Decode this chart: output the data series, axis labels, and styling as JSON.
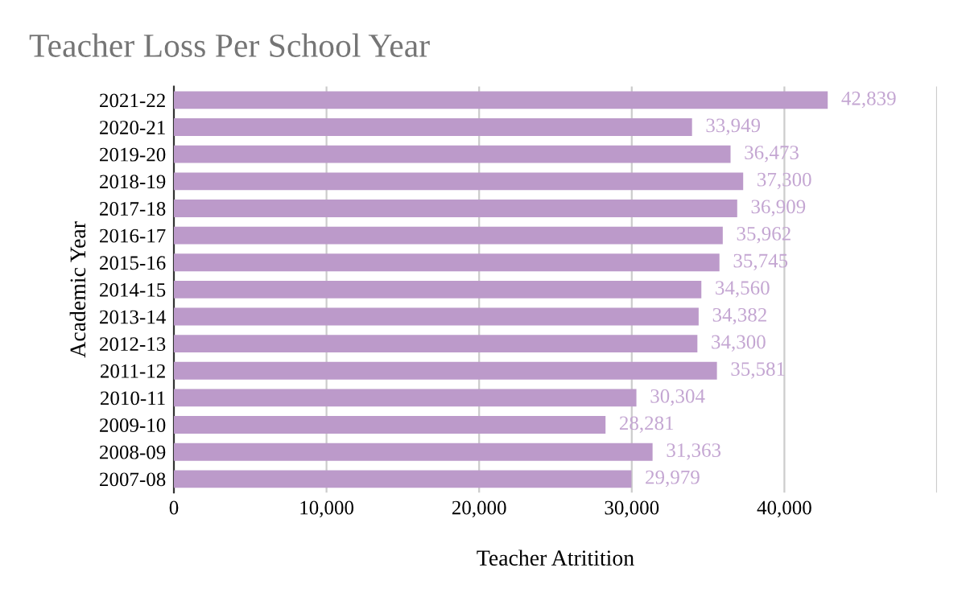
{
  "chart_data": {
    "type": "bar",
    "orientation": "horizontal",
    "title": "Teacher Loss Per School Year",
    "xlabel": "Teacher Atritition",
    "ylabel": "Academic Year",
    "categories": [
      "2021-22",
      "2020-21",
      "2019-20",
      "2018-19",
      "2017-18",
      "2016-17",
      "2015-16",
      "2014-15",
      "2013-14",
      "2012-13",
      "2011-12",
      "2010-11",
      "2009-10",
      "2008-09",
      "2007-08"
    ],
    "values": [
      42839,
      33949,
      36473,
      37300,
      36909,
      35962,
      35745,
      34560,
      34382,
      34300,
      35581,
      30304,
      28281,
      31363,
      29979
    ],
    "value_labels": [
      "42,839",
      "33,949",
      "36,473",
      "37,300",
      "36,909",
      "35,962",
      "35,745",
      "34,560",
      "34,382",
      "34,300",
      "35,581",
      "30,304",
      "28,281",
      "31,363",
      "29,979"
    ],
    "color": "#bc9aca",
    "xlim": [
      0,
      50000
    ],
    "xticks": [
      {
        "value": 0,
        "label": "0"
      },
      {
        "value": 10000,
        "label": "10,000"
      },
      {
        "value": 20000,
        "label": "20,000"
      },
      {
        "value": 30000,
        "label": "30,000"
      },
      {
        "value": 40000,
        "label": "40,000"
      },
      {
        "value": 50000,
        "label": null
      }
    ],
    "grid": "x"
  }
}
